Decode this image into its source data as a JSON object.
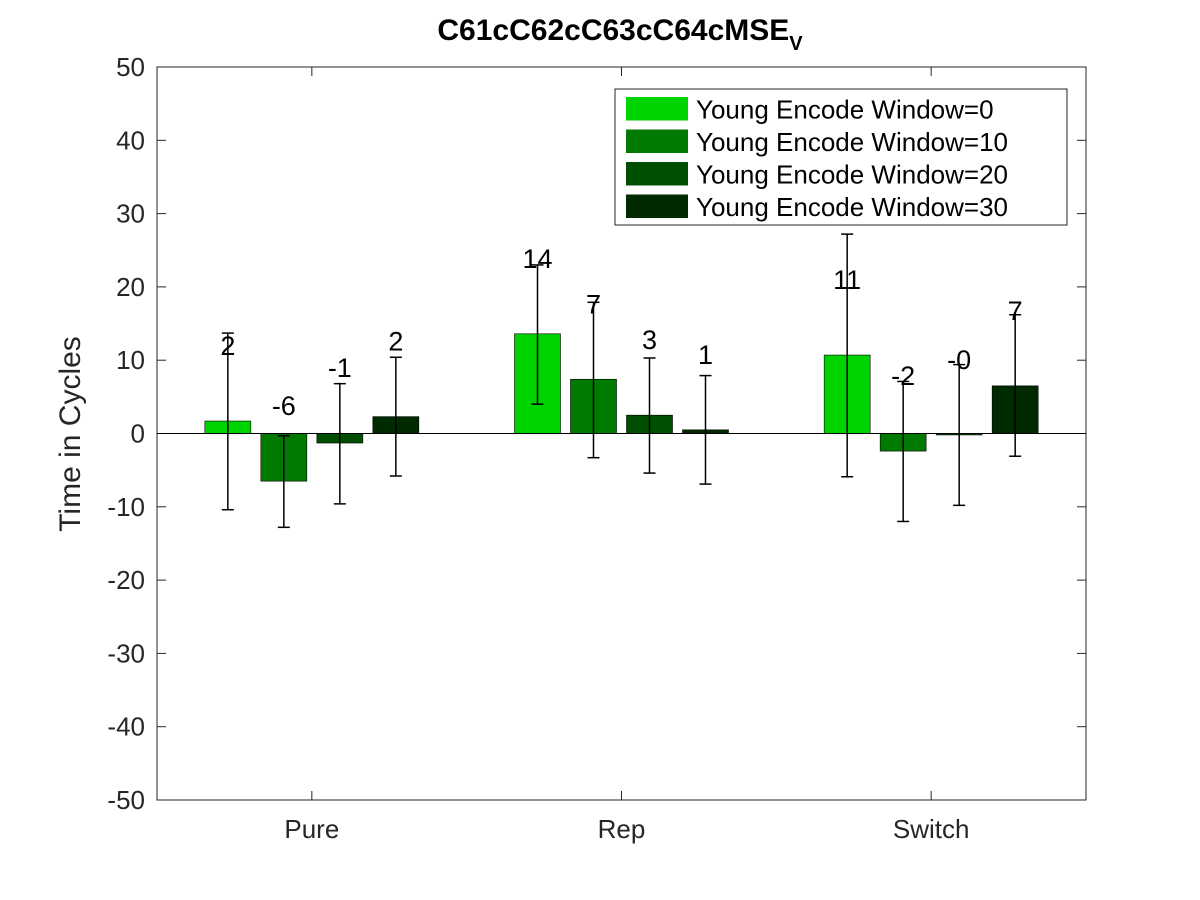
{
  "chart_data": {
    "type": "bar",
    "title": "C61cC62cC63cC64cMSE",
    "title_subscript": "V",
    "xlabel": "",
    "ylabel": "Time in Cycles",
    "categories": [
      "Pure",
      "Rep",
      "Switch"
    ],
    "ylim": [
      -50,
      50
    ],
    "yticks": [
      -50,
      -40,
      -30,
      -20,
      -10,
      0,
      10,
      20,
      30,
      40,
      50
    ],
    "grid": false,
    "legend_position": "top-right",
    "series": [
      {
        "name": "Young Encode Window=0",
        "color": "#00d400",
        "values": [
          1.7,
          13.6,
          10.7
        ],
        "error_low": [
          -10.4,
          4.0,
          -5.9
        ],
        "error_high": [
          13.7,
          23.0,
          27.2
        ],
        "labels": [
          "2",
          "14",
          "11"
        ]
      },
      {
        "name": "Young Encode Window=10",
        "color": "#007a00",
        "values": [
          -6.5,
          7.4,
          -2.4
        ],
        "error_low": [
          -12.8,
          -3.3,
          -12.0
        ],
        "error_high": [
          -0.3,
          17.9,
          7.1
        ],
        "labels": [
          "-6",
          "7",
          "-2"
        ]
      },
      {
        "name": "Young Encode Window=20",
        "color": "#004f00",
        "values": [
          -1.3,
          2.5,
          -0.2
        ],
        "error_low": [
          -9.6,
          -5.4,
          -9.8
        ],
        "error_high": [
          6.8,
          10.3,
          9.4
        ],
        "labels": [
          "-1",
          "3",
          "-0"
        ]
      },
      {
        "name": "Young Encode Window=30",
        "color": "#002a00",
        "values": [
          2.3,
          0.5,
          6.5
        ],
        "error_low": [
          -5.8,
          -6.9,
          -3.1
        ],
        "error_high": [
          10.4,
          7.9,
          16.2
        ],
        "labels": [
          "2",
          "1",
          "7"
        ]
      }
    ]
  }
}
